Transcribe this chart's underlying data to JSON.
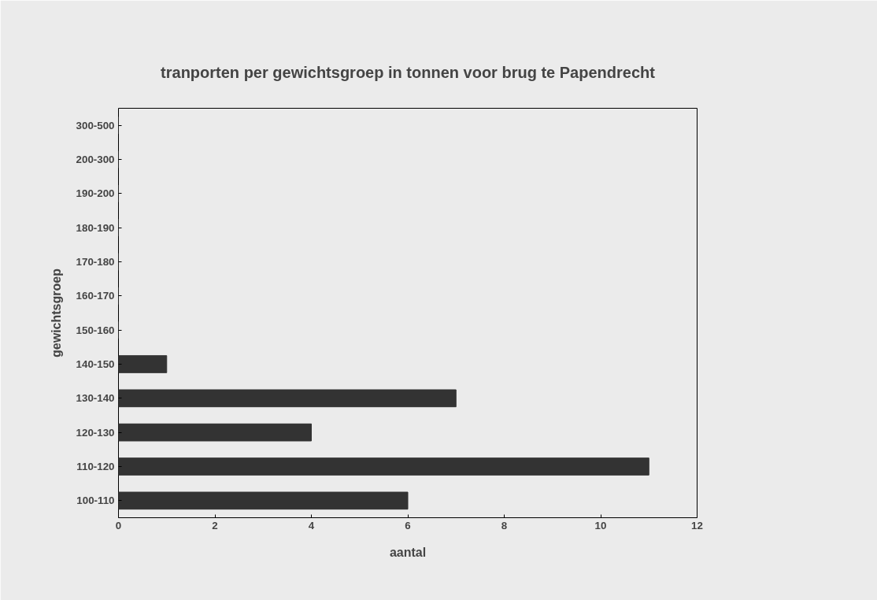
{
  "chart_data": {
    "type": "bar",
    "orientation": "horizontal",
    "title": "tranporten per gewichtsgroep in tonnen voor brug te Papendrecht",
    "xlabel": "aantal",
    "ylabel": "gewichtsgroep",
    "categories": [
      "300-500",
      "200-300",
      "190-200",
      "180-190",
      "170-180",
      "160-170",
      "150-160",
      "140-150",
      "130-140",
      "120-130",
      "110-120",
      "100-110"
    ],
    "values": [
      0,
      0,
      0,
      0,
      0,
      0,
      0,
      1,
      7,
      4,
      11,
      6
    ],
    "color": "#333333",
    "xlim": [
      0,
      12
    ],
    "xticks": [
      0,
      2,
      4,
      6,
      8,
      10,
      12
    ],
    "grid": false
  }
}
